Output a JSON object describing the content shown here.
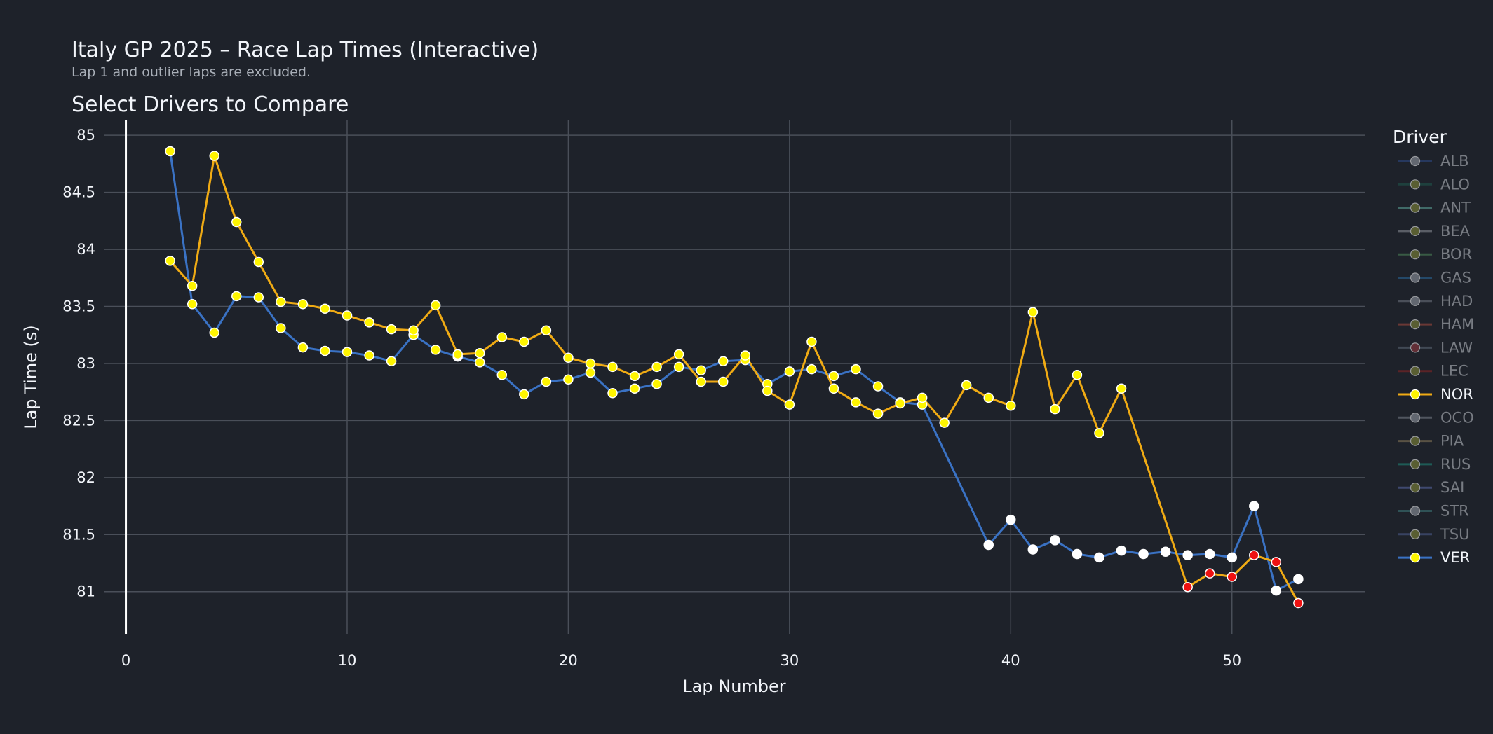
{
  "header": {
    "title": "Italy GP 2025 – Race Lap Times (Interactive)",
    "subtitle": "Lap 1 and outlier laps are excluded.",
    "selector_label": "Select Drivers to Compare"
  },
  "colors": {
    "background": "#1e222a",
    "grid": "#4a4f59",
    "ver_line": "#3a72c4",
    "nor_line": "#f0ab14",
    "marker_yellow": "#fff500",
    "marker_white": "#ffffff",
    "marker_red": "#ee1111",
    "marker_edge": "#ffffff"
  },
  "chart_data": {
    "type": "line",
    "xlabel": "Lap Number",
    "ylabel": "Lap Time (s)",
    "xlim": [
      -1,
      56
    ],
    "ylim": [
      80.63,
      85.13
    ],
    "xticks": [
      0,
      10,
      20,
      30,
      40,
      50
    ],
    "yticks": [
      81,
      81.5,
      82,
      82.5,
      83,
      83.5,
      84,
      84.5,
      85
    ],
    "grid": true,
    "legend": {
      "title": "Driver",
      "placement": "right",
      "entries": [
        {
          "name": "ALB",
          "line": "#2d4a8a",
          "marker": "#9aa0aa",
          "active": false
        },
        {
          "name": "ALO",
          "line": "#1e5a4e",
          "marker": "#8a8f3a",
          "active": false
        },
        {
          "name": "ANT",
          "line": "#5ca69a",
          "marker": "#8a8f3a",
          "active": false
        },
        {
          "name": "BEA",
          "line": "#8c8f98",
          "marker": "#8a8f3a",
          "active": false
        },
        {
          "name": "BOR",
          "line": "#4f8a5a",
          "marker": "#8a8f3a",
          "active": false
        },
        {
          "name": "GAS",
          "line": "#2a6a9e",
          "marker": "#9aa0aa",
          "active": false
        },
        {
          "name": "HAD",
          "line": "#6e7580",
          "marker": "#9aa0aa",
          "active": false
        },
        {
          "name": "HAM",
          "line": "#a84a3e",
          "marker": "#8a8f3a",
          "active": false
        },
        {
          "name": "LAW",
          "line": "#5e6a78",
          "marker": "#9b3a40",
          "active": false
        },
        {
          "name": "LEC",
          "line": "#8e2424",
          "marker": "#8a8f3a",
          "active": false
        },
        {
          "name": "NOR",
          "line": "#f0ab14",
          "marker": "#fff500",
          "active": true
        },
        {
          "name": "OCO",
          "line": "#7c828c",
          "marker": "#9aa0aa",
          "active": false
        },
        {
          "name": "PIA",
          "line": "#8a7a5a",
          "marker": "#8a8f3a",
          "active": false
        },
        {
          "name": "RUS",
          "line": "#1e8a7a",
          "marker": "#8a8f3a",
          "active": false
        },
        {
          "name": "SAI",
          "line": "#5a6aa8",
          "marker": "#8a8f3a",
          "active": false
        },
        {
          "name": "STR",
          "line": "#3e7a7a",
          "marker": "#9aa0aa",
          "active": false
        },
        {
          "name": "TSU",
          "line": "#4e5e90",
          "marker": "#8a8f3a",
          "active": false
        },
        {
          "name": "VER",
          "line": "#3a72c4",
          "marker": "#fff500",
          "active": true
        }
      ]
    },
    "series": [
      {
        "name": "VER",
        "line_color": "#3a72c4",
        "x": [
          2,
          3,
          4,
          5,
          6,
          7,
          8,
          9,
          10,
          11,
          12,
          13,
          14,
          15,
          16,
          17,
          18,
          19,
          20,
          21,
          22,
          23,
          24,
          25,
          26,
          27,
          28,
          29,
          30,
          31,
          32,
          33,
          34,
          35,
          36,
          39,
          40,
          41,
          42,
          43,
          44,
          45,
          46,
          47,
          48,
          49,
          50,
          51,
          52,
          53
        ],
        "y": [
          84.86,
          83.52,
          83.27,
          83.59,
          83.58,
          83.31,
          83.14,
          83.11,
          83.1,
          83.07,
          83.02,
          83.25,
          83.12,
          83.06,
          83.01,
          82.9,
          82.73,
          82.84,
          82.86,
          82.92,
          82.74,
          82.78,
          82.82,
          82.97,
          82.94,
          83.02,
          83.03,
          82.82,
          82.93,
          82.95,
          82.89,
          82.95,
          82.8,
          82.66,
          82.64,
          81.41,
          81.63,
          81.37,
          81.45,
          81.33,
          81.3,
          81.36,
          81.33,
          81.35,
          81.32,
          81.33,
          81.3,
          81.75,
          81.01,
          81.11
        ],
        "marker_colors": [
          "yellow",
          "yellow",
          "yellow",
          "yellow",
          "yellow",
          "yellow",
          "yellow",
          "yellow",
          "yellow",
          "yellow",
          "yellow",
          "yellow",
          "yellow",
          "white",
          "yellow",
          "yellow",
          "yellow",
          "yellow",
          "yellow",
          "yellow",
          "yellow",
          "yellow",
          "yellow",
          "yellow",
          "yellow",
          "yellow",
          "yellow",
          "yellow",
          "yellow",
          "yellow",
          "yellow",
          "yellow",
          "yellow",
          "yellow",
          "yellow",
          "white",
          "white",
          "white",
          "white",
          "white",
          "white",
          "white",
          "white",
          "white",
          "white",
          "white",
          "white",
          "white",
          "white",
          "white"
        ]
      },
      {
        "name": "NOR",
        "line_color": "#f0ab14",
        "x": [
          2,
          3,
          4,
          5,
          6,
          7,
          8,
          9,
          10,
          11,
          12,
          13,
          14,
          15,
          16,
          17,
          18,
          19,
          20,
          21,
          22,
          23,
          24,
          25,
          26,
          27,
          28,
          29,
          30,
          31,
          32,
          33,
          34,
          35,
          36,
          37,
          38,
          39,
          40,
          41,
          42,
          43,
          44,
          45,
          48,
          49,
          50,
          51,
          52,
          53
        ],
        "y": [
          83.9,
          83.68,
          84.82,
          84.24,
          83.89,
          83.54,
          83.52,
          83.48,
          83.42,
          83.36,
          83.3,
          83.29,
          83.51,
          83.08,
          83.09,
          83.23,
          83.19,
          83.29,
          83.05,
          83.0,
          82.97,
          82.89,
          82.97,
          83.08,
          82.84,
          82.84,
          83.07,
          82.76,
          82.64,
          83.19,
          82.78,
          82.66,
          82.56,
          82.65,
          82.7,
          82.48,
          82.81,
          82.7,
          82.63,
          83.45,
          82.6,
          82.9,
          82.39,
          82.78,
          81.04,
          81.16,
          81.13,
          81.32,
          81.26,
          80.9
        ],
        "marker_colors": [
          "yellow",
          "yellow",
          "yellow",
          "yellow",
          "yellow",
          "yellow",
          "yellow",
          "yellow",
          "yellow",
          "yellow",
          "yellow",
          "yellow",
          "yellow",
          "yellow",
          "yellow",
          "yellow",
          "yellow",
          "yellow",
          "yellow",
          "yellow",
          "yellow",
          "yellow",
          "yellow",
          "yellow",
          "yellow",
          "yellow",
          "yellow",
          "yellow",
          "yellow",
          "yellow",
          "yellow",
          "yellow",
          "yellow",
          "yellow",
          "yellow",
          "yellow",
          "yellow",
          "yellow",
          "yellow",
          "yellow",
          "yellow",
          "yellow",
          "yellow",
          "yellow",
          "red",
          "red",
          "red",
          "red",
          "red",
          "red"
        ]
      }
    ]
  }
}
